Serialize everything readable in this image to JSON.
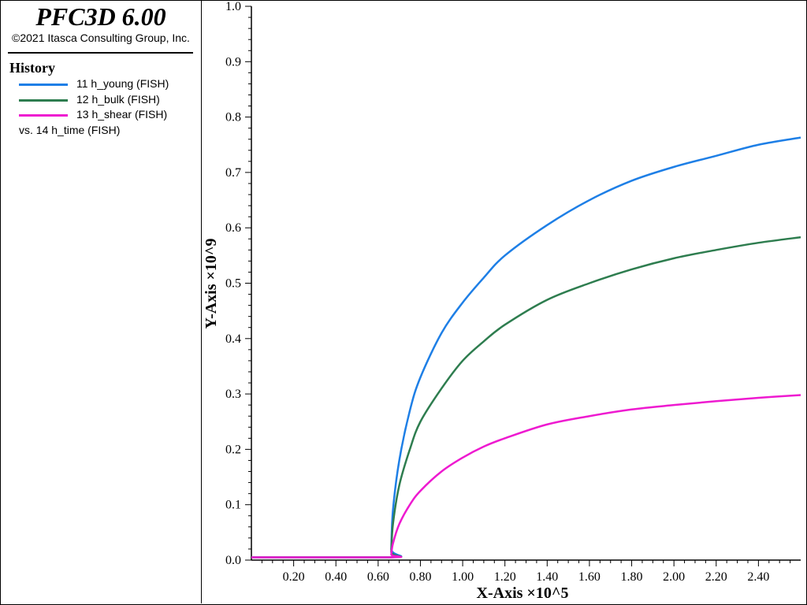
{
  "app": {
    "title": "PFC3D 6.00",
    "copyright": "©2021 Itasca Consulting Group, Inc."
  },
  "legend": {
    "title": "History",
    "items": [
      {
        "label": "11 h_young (FISH)",
        "color": "#1e7fe6"
      },
      {
        "label": "12 h_bulk (FISH)",
        "color": "#2e7d4f"
      },
      {
        "label": "13 h_shear (FISH)",
        "color": "#ee1ad0"
      }
    ],
    "vs_label": "vs. 14 h_time (FISH)"
  },
  "chart_data": {
    "type": "line",
    "xlabel": "X-Axis ×10^5",
    "ylabel": "Y-Axis ×10^9",
    "xlim": [
      0.0,
      2.6
    ],
    "ylim": [
      0.0,
      1.0
    ],
    "x_ticks": [
      "0.20",
      "0.40",
      "0.60",
      "0.80",
      "1.00",
      "1.20",
      "1.40",
      "1.60",
      "1.80",
      "2.00",
      "2.20",
      "2.40"
    ],
    "y_ticks": [
      "0.0",
      "0.1",
      "0.2",
      "0.3",
      "0.4",
      "0.5",
      "0.6",
      "0.7",
      "0.8",
      "0.9",
      "1.0"
    ],
    "grid": false,
    "legend_position": "left-panel",
    "x": [
      0.0,
      0.66,
      0.662,
      0.67,
      0.7,
      0.75,
      0.8,
      0.9,
      1.0,
      1.1,
      1.2,
      1.4,
      1.6,
      1.8,
      2.0,
      2.2,
      2.4,
      2.6
    ],
    "series": [
      {
        "name": "11 h_young (FISH)",
        "color": "#1e7fe6",
        "values": [
          0.005,
          0.005,
          0.02,
          0.09,
          0.18,
          0.27,
          0.33,
          0.41,
          0.465,
          0.51,
          0.55,
          0.605,
          0.65,
          0.685,
          0.71,
          0.73,
          0.75,
          0.763
        ]
      },
      {
        "name": "12 h_bulk (FISH)",
        "color": "#2e7d4f",
        "values": [
          0.005,
          0.005,
          0.015,
          0.065,
          0.135,
          0.2,
          0.25,
          0.31,
          0.36,
          0.395,
          0.425,
          0.47,
          0.5,
          0.525,
          0.545,
          0.56,
          0.573,
          0.583
        ]
      },
      {
        "name": "13 h_shear (FISH)",
        "color": "#ee1ad0",
        "values": [
          0.005,
          0.005,
          0.01,
          0.03,
          0.065,
          0.1,
          0.125,
          0.16,
          0.185,
          0.205,
          0.22,
          0.245,
          0.26,
          0.272,
          0.28,
          0.287,
          0.293,
          0.298
        ]
      }
    ]
  }
}
